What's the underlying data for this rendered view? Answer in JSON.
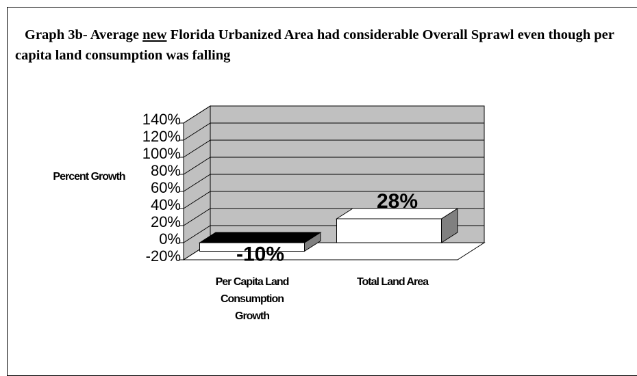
{
  "chart_data": {
    "type": "bar3d",
    "title": [
      "Graph 3b- Average ",
      "new",
      " Florida Urbanized Area had considerable Overall Sprawl even though per capita land consumption was falling"
    ],
    "y_label": "Percent Growth",
    "categories": [
      "Per Capita Land Consumption Growth",
      "Total Land Area"
    ],
    "values": [
      -10,
      28
    ],
    "value_labels": [
      "-10%",
      "28%"
    ],
    "ylim": [
      -20,
      140
    ],
    "yticks": [
      {
        "value": -20,
        "label": "-20%"
      },
      {
        "value": 0,
        "label": "0%"
      },
      {
        "value": 20,
        "label": "20%"
      },
      {
        "value": 40,
        "label": "40%"
      },
      {
        "value": 60,
        "label": "60%"
      },
      {
        "value": 80,
        "label": "80%"
      },
      {
        "value": 100,
        "label": "100%"
      },
      {
        "value": 120,
        "label": "120%"
      },
      {
        "value": 140,
        "label": "140%"
      }
    ],
    "grid": true,
    "wall_color": "#c0c0c0",
    "bar_color": "#ffffff"
  }
}
